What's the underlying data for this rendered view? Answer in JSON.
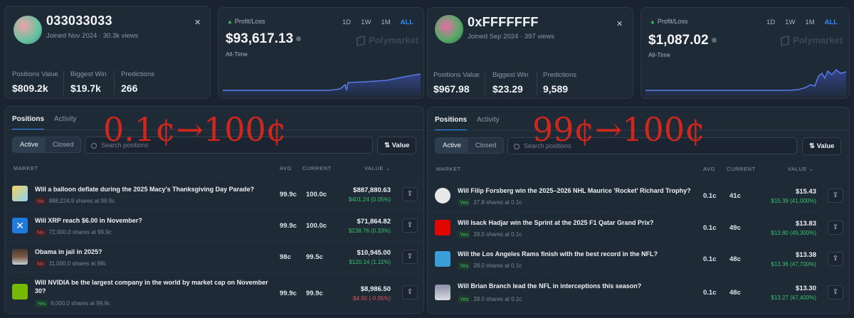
{
  "colors": {
    "accent": "#2f8bff",
    "gain": "#35c46a",
    "loss": "#e2515b",
    "overlay": "#d0261b"
  },
  "left": {
    "profile": {
      "name": "033033033",
      "joined": "Joined Nov 2024",
      "views": "30.3k views",
      "expand_icon": "expand-icon"
    },
    "stats": [
      {
        "label": "Positions Value",
        "value": "$809.2k"
      },
      {
        "label": "Biggest Win",
        "value": "$19.7k"
      },
      {
        "label": "Predictions",
        "value": "266"
      }
    ],
    "pl": {
      "title": "Profit/Loss",
      "value": "$93,617.13",
      "sub": "All-Time",
      "ranges": [
        "1D",
        "1W",
        "1M",
        "ALL"
      ],
      "brand": "Polymarket"
    },
    "tabs": [
      "Positions",
      "Activity"
    ],
    "filters": [
      "Active",
      "Closed"
    ],
    "search_placeholder": "Search positions",
    "value_btn": "Value",
    "headers": {
      "market": "MARKET",
      "avg": "AVG",
      "current": "CURRENT",
      "value": "VALUE ⌄"
    },
    "overlay": "0.1¢→100¢",
    "rows": [
      {
        "title": "Will a balloon deflate during the 2025 Macy's Thanksgiving Day Parade?",
        "outcome": "No",
        "shares": "888,224.9 shares at 99.9c",
        "avg": "99.9c",
        "current": "100.0c",
        "value": "$887,880.63",
        "gain": "$401.24 (0.05%)"
      },
      {
        "title": "Will XRP reach $6.00 in November?",
        "outcome": "No",
        "shares": "72,000.0 shares at 99.9c",
        "avg": "99.9c",
        "current": "100.0c",
        "value": "$71,864.82",
        "gain": "$238.76 (0.33%)"
      },
      {
        "title": "Obama in jail in 2025?",
        "outcome": "No",
        "shares": "11,000.0 shares at 98c",
        "avg": "98c",
        "current": "99.5c",
        "value": "$10,945.00",
        "gain": "$120.14 (1.11%)"
      },
      {
        "title": "Will NVIDIA be the largest company in the world by market cap on November 30?",
        "outcome": "Yes",
        "shares": "9,000.0 shares at 99.9c",
        "avg": "99.9c",
        "current": "99.9c",
        "value": "$8,986.50",
        "gain": "-$4.50 (-0.05%)"
      }
    ]
  },
  "right": {
    "profile": {
      "name": "0xFFFFFFF",
      "joined": "Joined Sep 2024",
      "views": "397 views",
      "expand_icon": "expand-icon"
    },
    "stats": [
      {
        "label": "Positions Value",
        "value": "$967.98"
      },
      {
        "label": "Biggest Win",
        "value": "$23.29"
      },
      {
        "label": "Predictions",
        "value": "9,589"
      }
    ],
    "pl": {
      "title": "Profit/Loss",
      "value": "$1,087.02",
      "sub": "All-Time",
      "ranges": [
        "1D",
        "1W",
        "1M",
        "ALL"
      ],
      "brand": "Polymarket"
    },
    "tabs": [
      "Positions",
      "Activity"
    ],
    "filters": [
      "Active",
      "Closed"
    ],
    "search_placeholder": "Search positions",
    "value_btn": "Value",
    "headers": {
      "market": "MARKET",
      "avg": "AVG",
      "current": "CURRENT",
      "value": "VALUE ⌄"
    },
    "overlay": "99¢→100¢",
    "rows": [
      {
        "title": "Will Filip Forsberg win the 2025–2026 NHL Maurice 'Rocket' Richard Trophy?",
        "outcome": "Yes",
        "shares": "37.8 shares at 0.1c",
        "avg": "0.1c",
        "current": "41c",
        "value": "$15.43",
        "gain": "$15.39 (41,000%)"
      },
      {
        "title": "Will Isack Hadjar win the Sprint at the 2025 F1 Qatar Grand Prix?",
        "outcome": "Yes",
        "shares": "28.0 shares at 0.1c",
        "avg": "0.1c",
        "current": "49c",
        "value": "$13.83",
        "gain": "$13.80 (49,300%)"
      },
      {
        "title": "Will the Los Angeles Rams finish with the best record in the NFL?",
        "outcome": "Yes",
        "shares": "28.0 shares at 0.1c",
        "avg": "0.1c",
        "current": "48c",
        "value": "$13.38",
        "gain": "$13.36 (47,700%)"
      },
      {
        "title": "Will Brian Branch lead the NFL in interceptions this season?",
        "outcome": "Yes",
        "shares": "28.0 shares at 0.1c",
        "avg": "0.1c",
        "current": "48c",
        "value": "$13.30",
        "gain": "$13.27 (47,400%)"
      }
    ]
  }
}
